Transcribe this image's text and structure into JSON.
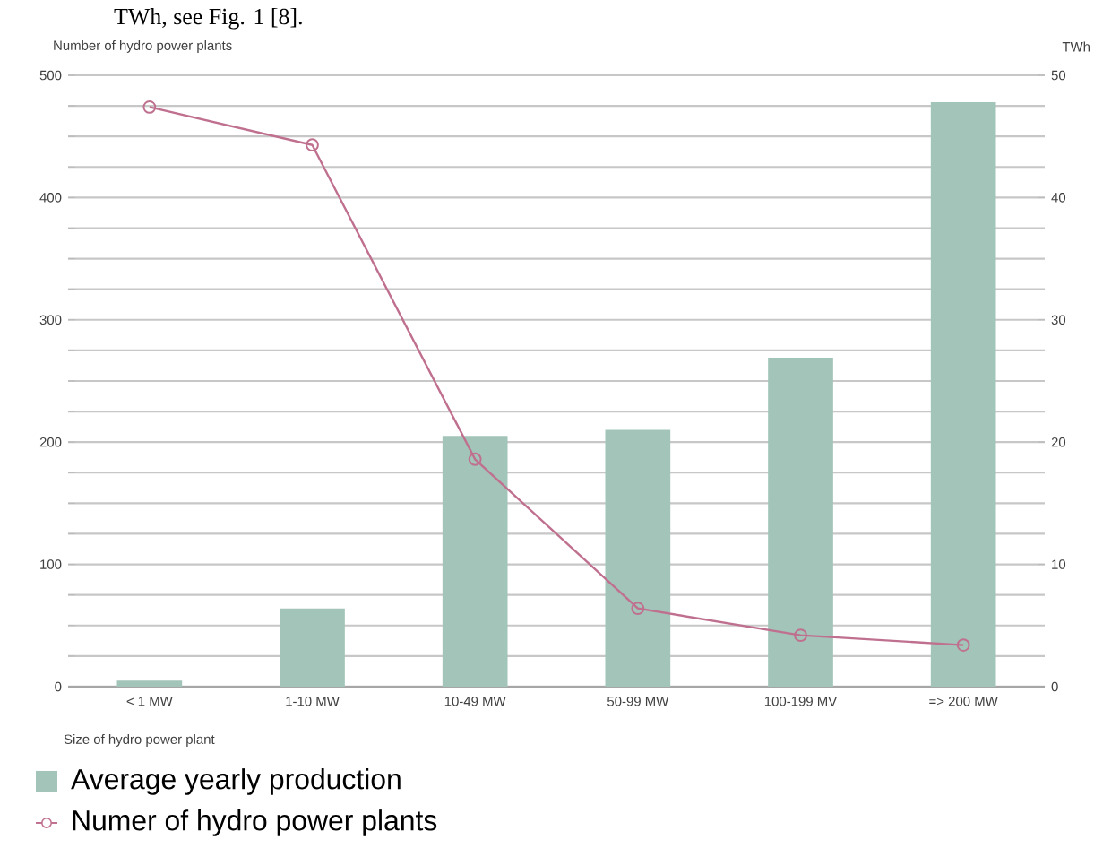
{
  "chart_data": {
    "type": "bar",
    "annotations": [
      "TWh, see Fig. 1 [8]."
    ],
    "ylabel": "Number of hydro power plants",
    "y2label": "TWh",
    "xlabel": "Size of hydro power plant",
    "categories": [
      "< 1 MW",
      "1-10 MW",
      "10-49 MW",
      "50-99 MW",
      "100-199 MV",
      "=> 200 MW"
    ],
    "series": [
      {
        "name": "Average yearly production",
        "axis": "y2",
        "color": "#a3c4b8",
        "values": [
          0.5,
          6.4,
          20.5,
          21.0,
          26.9,
          47.8
        ]
      },
      {
        "name": "Numer of hydro power plants",
        "type": "line",
        "color": "#c0708f",
        "values": [
          474,
          443,
          186,
          64,
          42,
          34
        ]
      }
    ],
    "ylim": [
      0,
      500
    ],
    "yticks": [
      0,
      {
        "value": 25,
        "label": null
      },
      {
        "value": 50,
        "label": null
      },
      {
        "value": 75,
        "label": null
      },
      100,
      {
        "value": 125,
        "label": null
      },
      {
        "value": 150,
        "label": null
      },
      {
        "value": 175,
        "label": null
      },
      200,
      {
        "value": 225,
        "label": null
      },
      {
        "value": 250,
        "label": null
      },
      {
        "value": 275,
        "label": null
      },
      300,
      {
        "value": 325,
        "label": null
      },
      {
        "value": 350,
        "label": null
      },
      {
        "value": 375,
        "label": null
      },
      400,
      {
        "value": 425,
        "label": null
      },
      {
        "value": 450,
        "label": null
      },
      {
        "value": 475,
        "label": null
      },
      500
    ],
    "y2lim": [
      0,
      50
    ],
    "y2ticks": [
      0,
      10,
      20,
      30,
      40,
      50
    ],
    "grid": "y",
    "marker": "circle",
    "legend": "bottom left"
  }
}
